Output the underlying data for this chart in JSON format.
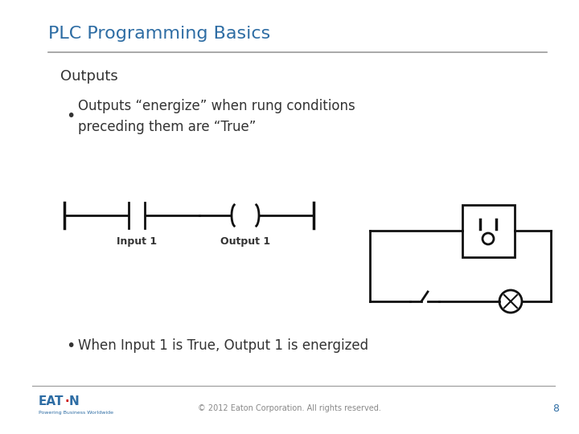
{
  "title": "PLC Programming Basics",
  "subtitle": "Outputs",
  "bullet1": "Outputs “energize” when rung conditions\npreceding them are “True”",
  "bullet2": "When Input 1 is True, Output 1 is energized",
  "input_label": "Input 1",
  "output_label": "Output 1",
  "footer_text": "© 2012 Eaton Corporation. All rights reserved.",
  "page_number": "8",
  "title_color": "#2E6DA4",
  "text_color": "#333333",
  "divider_color": "#999999",
  "bg_color": "#FFFFFF",
  "ladder_color": "#111111",
  "title_fontsize": 16,
  "subtitle_fontsize": 13,
  "bullet_fontsize": 12,
  "footer_fontsize": 7
}
